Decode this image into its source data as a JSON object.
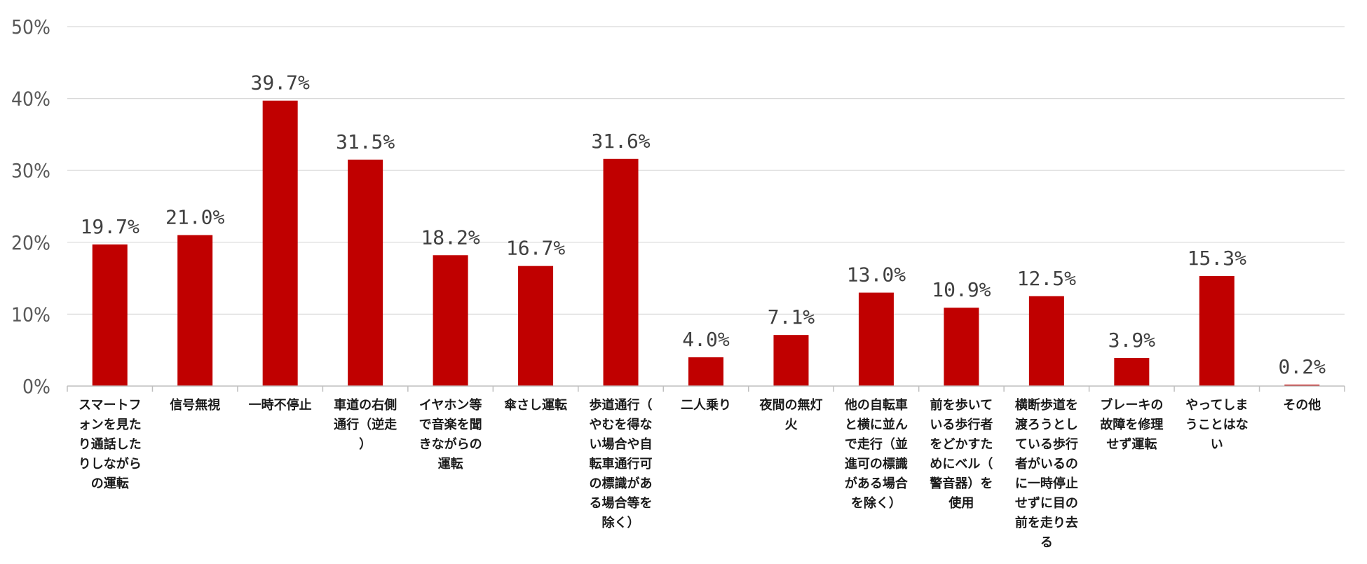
{
  "chart_data": {
    "type": "bar",
    "categories": [
      "スマートフォンを見たり通話したりしながらの運転",
      "信号無視",
      "一時不停止",
      "車道の右側通行（逆走）",
      "イヤホン等で音楽を聞きながらの運転",
      "傘さし運転",
      "歩道通行（やむを得ない場合や自転車通行可の標識がある場合等を除く）",
      "二人乗り",
      "夜間の無灯火",
      "他の自転車と横に並んで走行（並進可の標識がある場合を除く）",
      "前を歩いている歩行者をどかすためにベル（警音器）を使用",
      "横断歩道を渡ろうとしている歩行者がいるのに一時停止せずに目の前を走り去る",
      "ブレーキの故障を修理せず運転",
      "やってしまうことはない",
      "その他"
    ],
    "category_lines": [
      [
        "スマートフ",
        "ォンを見た",
        "り通話した",
        "りしながら",
        "の運転"
      ],
      [
        "信号無視"
      ],
      [
        "一時不停止"
      ],
      [
        "車道の右側",
        "通行（逆走",
        "）"
      ],
      [
        "イヤホン等",
        "で音楽を聞",
        "きながらの",
        "運転"
      ],
      [
        "傘さし運転"
      ],
      [
        "歩道通行（",
        "やむを得な",
        "い場合や自",
        "転車通行可",
        "の標識があ",
        "る場合等を",
        "除く）"
      ],
      [
        "二人乗り"
      ],
      [
        "夜間の無灯",
        "火"
      ],
      [
        "他の自転車",
        "と横に並ん",
        "で走行（並",
        "進可の標識",
        "がある場合",
        "を除く）"
      ],
      [
        "前を歩いて",
        "いる歩行者",
        "をどかすた",
        "めにベル（",
        "警音器）を",
        "使用"
      ],
      [
        "横断歩道を",
        "渡ろうとし",
        "ている歩行",
        "者がいるの",
        "に一時停止",
        "せずに目の",
        "前を走り去",
        "る"
      ],
      [
        "ブレーキの",
        "故障を修理",
        "せず運転"
      ],
      [
        "やってしま",
        "うことはな",
        "い"
      ],
      [
        "その他"
      ]
    ],
    "values": [
      19.7,
      21.0,
      39.7,
      31.5,
      18.2,
      16.7,
      31.6,
      4.0,
      7.1,
      13.0,
      10.9,
      12.5,
      3.9,
      15.3,
      0.2
    ],
    "value_labels": [
      "19.7%",
      "21.0%",
      "39.7%",
      "31.5%",
      "18.2%",
      "16.7%",
      "31.6%",
      "4.0%",
      "7.1%",
      "13.0%",
      "10.9%",
      "12.5%",
      "3.9%",
      "15.3%",
      "0.2%"
    ],
    "yticks": [
      0,
      10,
      20,
      30,
      40,
      50
    ],
    "ytick_labels": [
      "0%",
      "10%",
      "20%",
      "30%",
      "40%",
      "50%"
    ],
    "ylim": [
      0,
      50
    ],
    "title": "",
    "xlabel": "",
    "ylabel": "",
    "grid": true,
    "legend": "none",
    "bar_color": "#C00000",
    "grid_color": "#D9D9D9",
    "axis_color": "#BFBFBF"
  }
}
